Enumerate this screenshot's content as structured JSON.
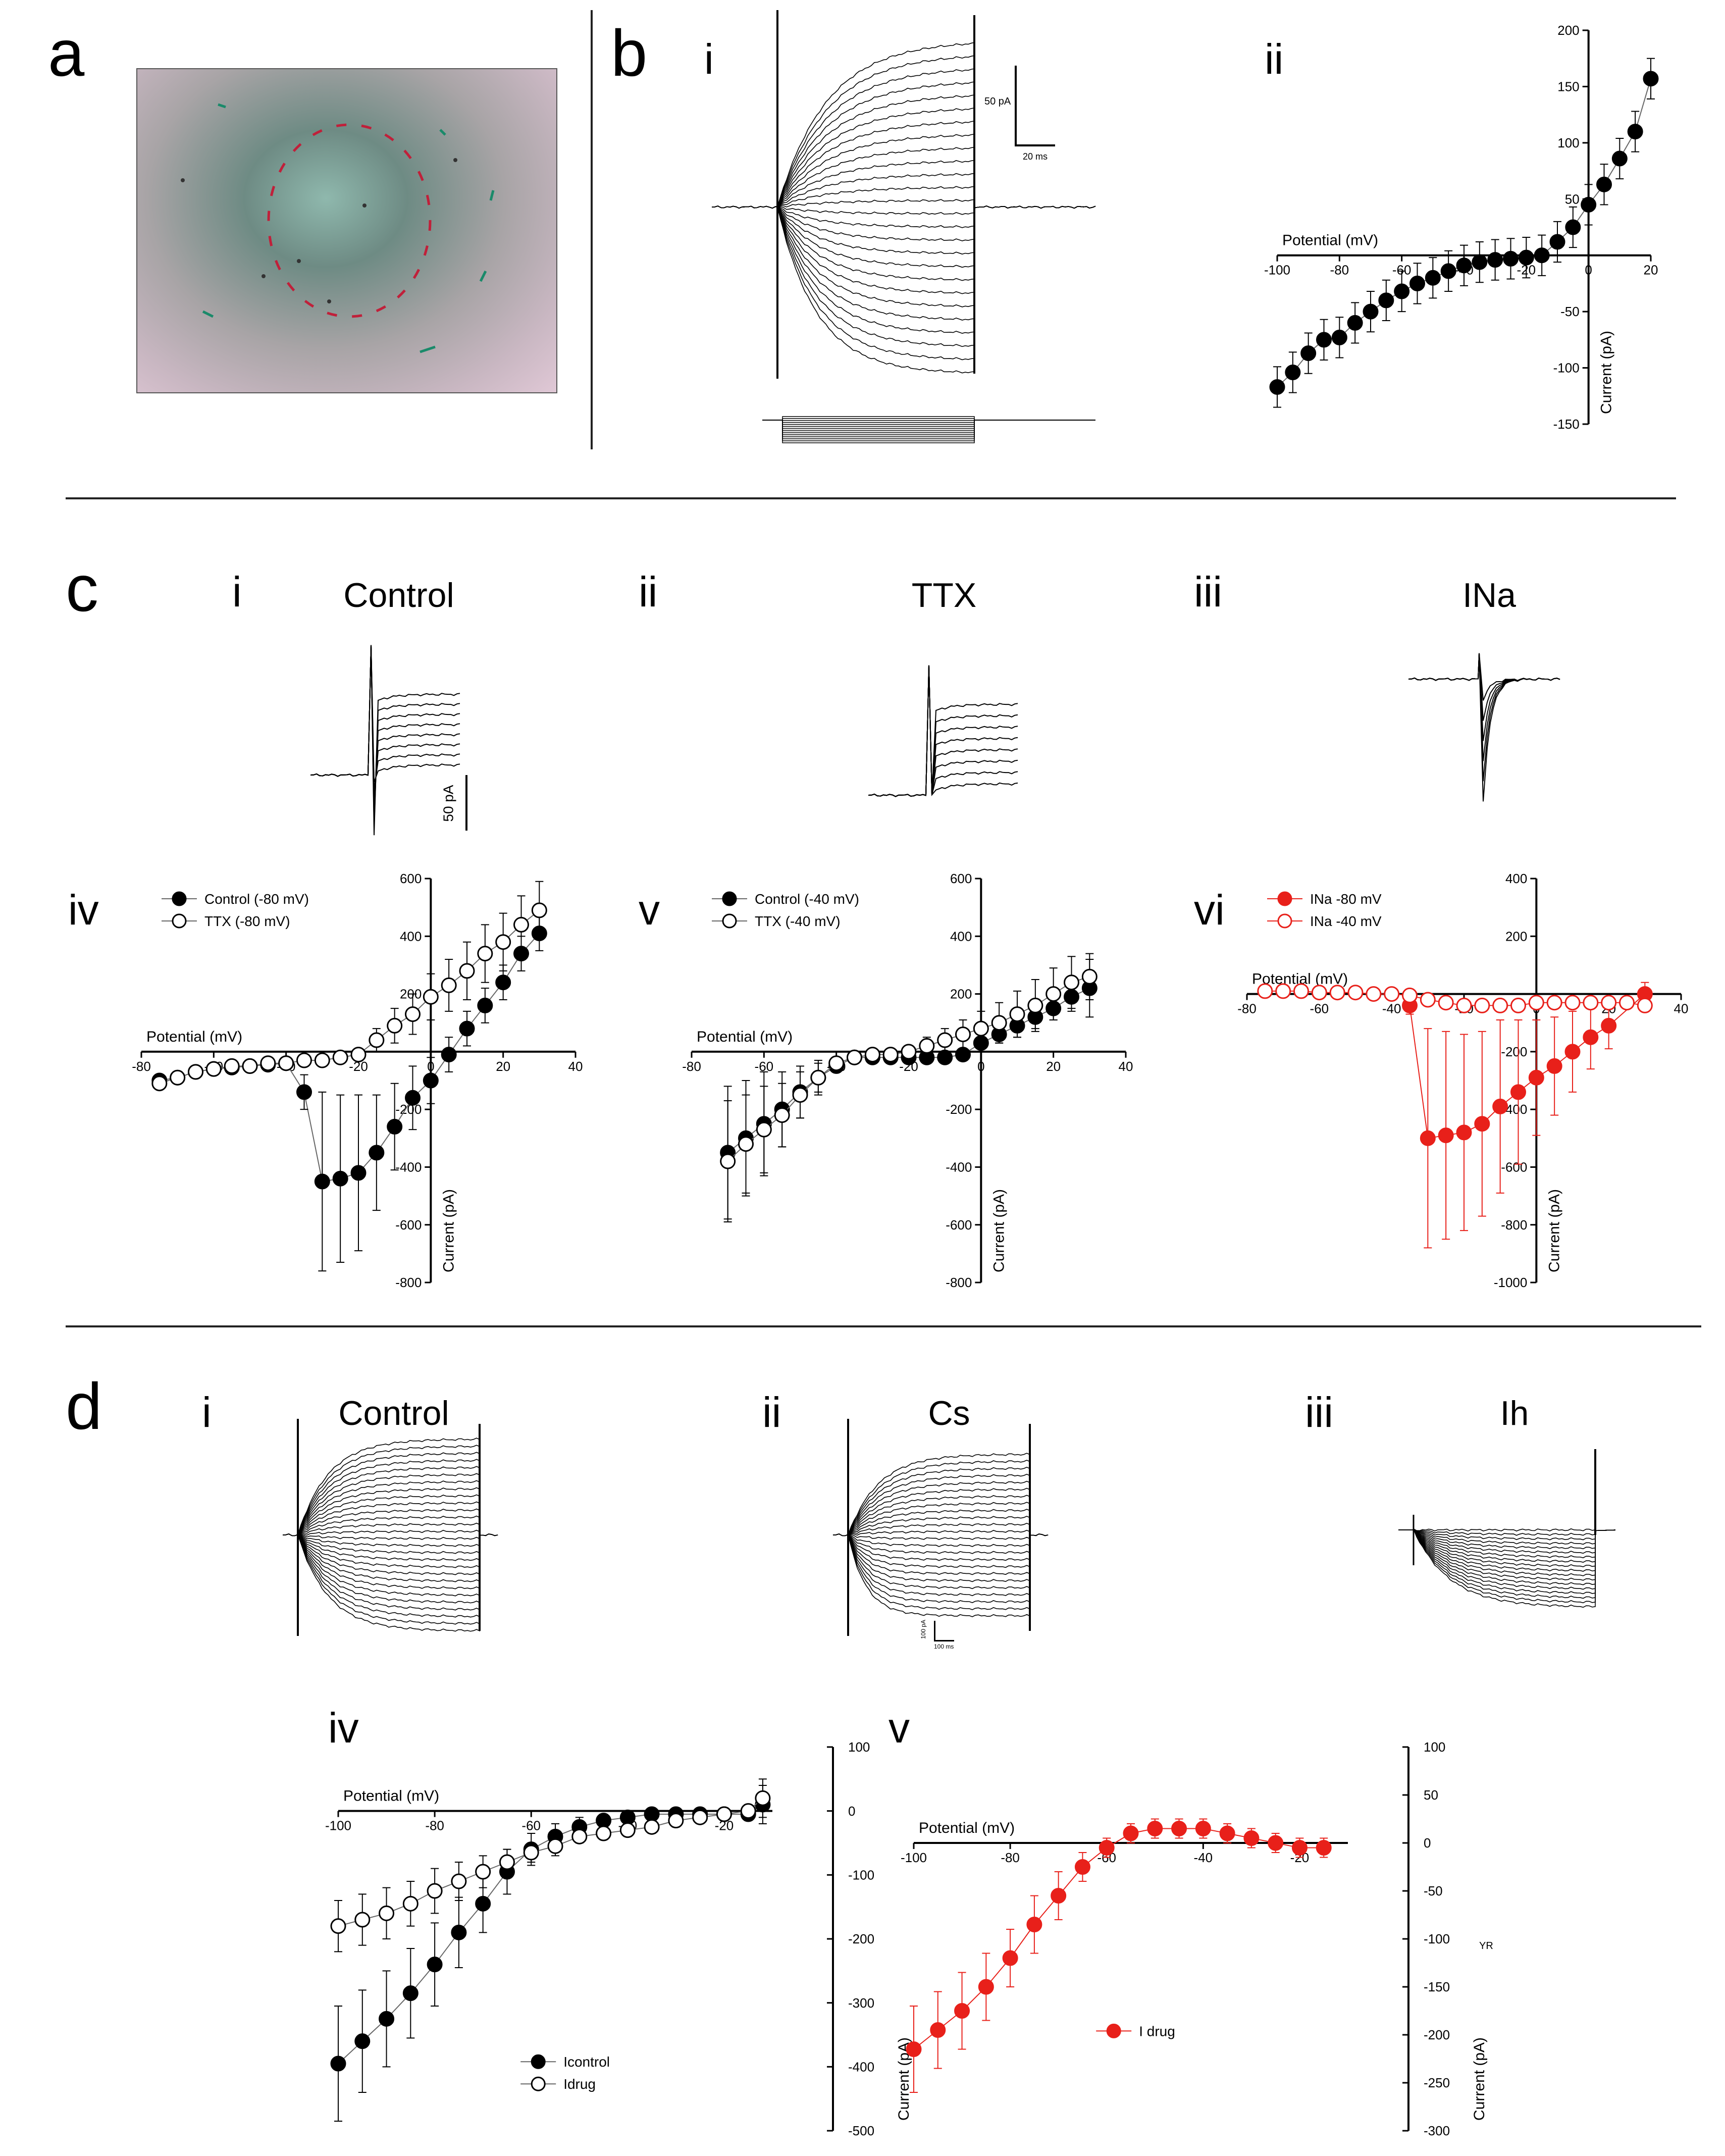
{
  "panels": {
    "a": "a",
    "b": "b",
    "c": "c",
    "d": "d"
  },
  "sub": {
    "i": "i",
    "ii": "ii",
    "iii": "iii",
    "iv": "iv",
    "v": "v",
    "vi": "vi"
  },
  "conditions": {
    "c_control": "Control",
    "c_ttx": "TTX",
    "c_ina": "INa",
    "d_control": "Control",
    "d_cs": "Cs",
    "d_ih": "Ih"
  },
  "scalebars": {
    "b_current": "50 pA",
    "b_time": "20 ms",
    "c_current": "50 pA",
    "d_current": "100 pA",
    "d_time": "100 ms"
  },
  "colors": {
    "red": "#e8201a",
    "black": "#000000"
  },
  "chart_data": [
    {
      "id": "b-ii",
      "type": "scatter",
      "xlabel": "Potential (mV)",
      "ylabel": "Current (pA)",
      "xlim": [
        -100,
        20
      ],
      "ylim": [
        -150,
        200
      ],
      "xticks": [
        -100,
        -80,
        -60,
        -40,
        -20,
        0,
        20
      ],
      "yticks": [
        -150,
        -100,
        -50,
        50,
        100,
        150,
        200
      ],
      "series": [
        {
          "style": "filled-black",
          "x": [
            -100,
            -97.5,
            -95,
            -92.5,
            -90,
            -87.5,
            -85,
            -82.5,
            -80,
            -77.5,
            -75,
            -72.5,
            -70,
            -67.5,
            -65,
            -62.5,
            -60,
            -57.5,
            -55,
            -52.5,
            -50,
            -47.5,
            -45,
            -42.5,
            -40,
            -37.5,
            -35,
            -32.5,
            -30,
            -27.5,
            -25,
            -22.5,
            -20,
            -17.5,
            -15,
            -12.5,
            -10,
            -7.5,
            -5,
            -2.5,
            0,
            2.5,
            5,
            7.5,
            10,
            12.5,
            15,
            17.5,
            20
          ],
          "y": [
            -117,
            null,
            -104,
            null,
            -87,
            null,
            -75,
            null,
            -73,
            null,
            -60,
            null,
            -50,
            null,
            -40,
            null,
            -32,
            null,
            -25,
            null,
            -20,
            null,
            -14,
            null,
            -9,
            null,
            -6,
            null,
            -4,
            null,
            -3,
            null,
            -2,
            null,
            0,
            null,
            12,
            null,
            25,
            null,
            45,
            null,
            63,
            null,
            86,
            null,
            110,
            null,
            157
          ],
          "err": 18
        }
      ]
    },
    {
      "id": "c-iv",
      "type": "line",
      "xlabel": "Potential (mV)",
      "ylabel": "Current (pA)",
      "xlim": [
        -80,
        40
      ],
      "ylim": [
        -800,
        600
      ],
      "xticks": [
        -80,
        -60,
        -40,
        -20,
        0,
        20,
        40
      ],
      "yticks": [
        -800,
        -600,
        -400,
        -200,
        200,
        400,
        600
      ],
      "legend": "top-left",
      "series": [
        {
          "name": "Control (-80 mV)",
          "style": "filled-black",
          "x": [
            -75,
            -70,
            -65,
            -60,
            -55,
            -50,
            -45,
            -40,
            -35,
            -30,
            -25,
            -20,
            -15,
            -10,
            -5,
            0,
            5,
            10,
            15,
            20,
            25,
            30
          ],
          "y": [
            -100,
            -90,
            -70,
            -60,
            -55,
            -50,
            -45,
            -40,
            -140,
            -450,
            -440,
            -420,
            -350,
            -260,
            -160,
            -100,
            -10,
            80,
            160,
            240,
            340,
            410
          ],
          "err": [
            10,
            10,
            10,
            10,
            10,
            10,
            10,
            10,
            60,
            310,
            290,
            270,
            200,
            150,
            110,
            80,
            60,
            60,
            60,
            60,
            60,
            60
          ]
        },
        {
          "name": "TTX (-80 mV)",
          "style": "open-black",
          "x": [
            -75,
            -70,
            -65,
            -60,
            -55,
            -50,
            -45,
            -40,
            -35,
            -30,
            -25,
            -20,
            -15,
            -10,
            -5,
            0,
            5,
            10,
            15,
            20,
            25,
            30
          ],
          "y": [
            -110,
            -90,
            -70,
            -60,
            -50,
            -50,
            -40,
            -40,
            -30,
            -30,
            -20,
            -10,
            40,
            90,
            130,
            190,
            230,
            280,
            340,
            380,
            440,
            490
          ],
          "err": [
            10,
            10,
            10,
            10,
            10,
            10,
            10,
            10,
            10,
            10,
            15,
            20,
            40,
            60,
            70,
            80,
            90,
            100,
            100,
            100,
            100,
            100
          ]
        }
      ]
    },
    {
      "id": "c-v",
      "type": "line",
      "xlabel": "Potential (mV)",
      "ylabel": "Current (pA)",
      "xlim": [
        -80,
        40
      ],
      "ylim": [
        -800,
        600
      ],
      "xticks": [
        -80,
        -60,
        -40,
        -20,
        0,
        20,
        40
      ],
      "yticks": [
        -800,
        -600,
        -400,
        -200,
        200,
        400,
        600
      ],
      "legend": "top-left",
      "series": [
        {
          "name": "Control (-40 mV)",
          "style": "filled-black",
          "x": [
            -70,
            -65,
            -60,
            -55,
            -50,
            -45,
            -40,
            -35,
            -30,
            -25,
            -20,
            -15,
            -10,
            -5,
            0,
            5,
            10,
            15,
            20,
            25,
            30
          ],
          "y": [
            -350,
            -300,
            -250,
            -200,
            -140,
            -90,
            -50,
            -20,
            -20,
            -20,
            -20,
            -20,
            -20,
            -10,
            30,
            60,
            90,
            120,
            150,
            190,
            220
          ],
          "err": [
            230,
            200,
            180,
            130,
            90,
            60,
            20,
            10,
            10,
            10,
            10,
            10,
            10,
            10,
            20,
            30,
            40,
            40,
            40,
            50,
            100
          ]
        },
        {
          "name": "TTX (-40 mV)",
          "style": "open-black",
          "x": [
            -70,
            -65,
            -60,
            -55,
            -50,
            -45,
            -40,
            -35,
            -30,
            -25,
            -20,
            -15,
            -10,
            -5,
            0,
            5,
            10,
            15,
            20,
            25,
            30
          ],
          "y": [
            -380,
            -320,
            -270,
            -220,
            -150,
            -90,
            -40,
            -20,
            -10,
            -10,
            0,
            20,
            40,
            60,
            80,
            100,
            130,
            160,
            200,
            240,
            260
          ],
          "err": [
            210,
            170,
            150,
            110,
            80,
            50,
            20,
            10,
            10,
            10,
            20,
            30,
            40,
            50,
            60,
            70,
            80,
            90,
            90,
            90,
            80
          ]
        }
      ]
    },
    {
      "id": "c-vi",
      "type": "line",
      "xlabel": "Potential (mV)",
      "ylabel": "Current (pA)",
      "xlim": [
        -80,
        40
      ],
      "ylim": [
        -1000,
        400
      ],
      "xticks": [
        -80,
        -60,
        -40,
        -20,
        0,
        20,
        40
      ],
      "yticks": [
        -1000,
        -800,
        -600,
        -400,
        -200,
        200,
        400
      ],
      "legend": "top-left",
      "series": [
        {
          "name": "INa -80 mV",
          "style": "filled-red",
          "x": [
            -35,
            -30,
            -25,
            -20,
            -15,
            -10,
            -5,
            0,
            5,
            10,
            15,
            20,
            30
          ],
          "y": [
            -40,
            -500,
            -490,
            -480,
            -450,
            -390,
            -340,
            -290,
            -250,
            -200,
            -150,
            -110,
            0
          ],
          "err": [
            30,
            380,
            360,
            340,
            320,
            300,
            250,
            200,
            170,
            140,
            110,
            80,
            40
          ]
        },
        {
          "name": "INa -40 mV",
          "style": "open-red",
          "x": [
            -75,
            -70,
            -65,
            -60,
            -55,
            -50,
            -45,
            -40,
            -35,
            -30,
            -25,
            -20,
            -15,
            -10,
            -5,
            0,
            5,
            10,
            15,
            20,
            25,
            30
          ],
          "y": [
            10,
            10,
            10,
            5,
            5,
            5,
            0,
            0,
            -5,
            -20,
            -30,
            -40,
            -40,
            -40,
            -40,
            -30,
            -30,
            -30,
            -30,
            -30,
            -30,
            -40
          ],
          "err": [
            20,
            20,
            20,
            20,
            20,
            20,
            20,
            20,
            20,
            20,
            20,
            20,
            20,
            20,
            20,
            20,
            20,
            20,
            20,
            20,
            20,
            20
          ]
        }
      ]
    },
    {
      "id": "d-iv",
      "type": "line",
      "xlabel": "Potential (mV)",
      "ylabel": "Current (pA)",
      "xlim": [
        -100,
        -10
      ],
      "ylim": [
        -500,
        100
      ],
      "xticks": [
        -100,
        -80,
        -60,
        -40,
        -20
      ],
      "yticks": [
        -500,
        -400,
        -300,
        -200,
        -100,
        0,
        100
      ],
      "legend": "bottom-right",
      "series": [
        {
          "name": "Icontrol",
          "style": "filled-black",
          "x": [
            -100,
            -95,
            -90,
            -85,
            -80,
            -75,
            -70,
            -65,
            -60,
            -55,
            -50,
            -45,
            -40,
            -35,
            -30,
            -25,
            -20,
            -15,
            -12
          ],
          "y": [
            -395,
            -360,
            -325,
            -285,
            -240,
            -190,
            -145,
            -95,
            -60,
            -40,
            -25,
            -15,
            -10,
            -5,
            -5,
            -5,
            -5,
            -5,
            10
          ],
          "err": [
            90,
            80,
            75,
            70,
            65,
            55,
            45,
            35,
            25,
            20,
            15,
            10,
            10,
            10,
            10,
            10,
            10,
            10,
            30
          ]
        },
        {
          "name": "Idrug",
          "style": "open-black",
          "x": [
            -100,
            -95,
            -90,
            -85,
            -80,
            -75,
            -70,
            -65,
            -60,
            -55,
            -50,
            -45,
            -40,
            -35,
            -30,
            -25,
            -20,
            -15,
            -12
          ],
          "y": [
            -180,
            -170,
            -160,
            -145,
            -125,
            -110,
            -95,
            -80,
            -65,
            -55,
            -40,
            -35,
            -30,
            -25,
            -15,
            -10,
            -5,
            0,
            20
          ],
          "err": [
            40,
            40,
            40,
            35,
            35,
            30,
            25,
            20,
            15,
            15,
            10,
            10,
            10,
            10,
            10,
            10,
            10,
            10,
            30
          ]
        }
      ]
    },
    {
      "id": "d-v",
      "type": "line",
      "xlabel": "Potential (mV)",
      "ylabel": "Current (pA)",
      "ylabel2": "YR",
      "xlim": [
        -100,
        -10
      ],
      "ylim": [
        -300,
        100
      ],
      "xticks": [
        -100,
        -80,
        -60,
        -40,
        -20
      ],
      "yticks": [
        -300,
        -250,
        -200,
        -150,
        -100,
        -50,
        0,
        50,
        100
      ],
      "legend": "bottom-center",
      "series": [
        {
          "name": "I drug",
          "style": "filled-red",
          "x": [
            -100,
            -95,
            -90,
            -85,
            -80,
            -75,
            -70,
            -65,
            -60,
            -55,
            -50,
            -45,
            -40,
            -35,
            -30,
            -25,
            -20,
            -15
          ],
          "y": [
            -215,
            -195,
            -175,
            -150,
            -120,
            -85,
            -55,
            -25,
            -5,
            10,
            15,
            15,
            15,
            10,
            5,
            0,
            -5,
            -5
          ],
          "err": [
            45,
            40,
            40,
            35,
            30,
            30,
            25,
            15,
            10,
            10,
            10,
            10,
            10,
            10,
            10,
            10,
            10,
            10
          ]
        }
      ]
    }
  ]
}
